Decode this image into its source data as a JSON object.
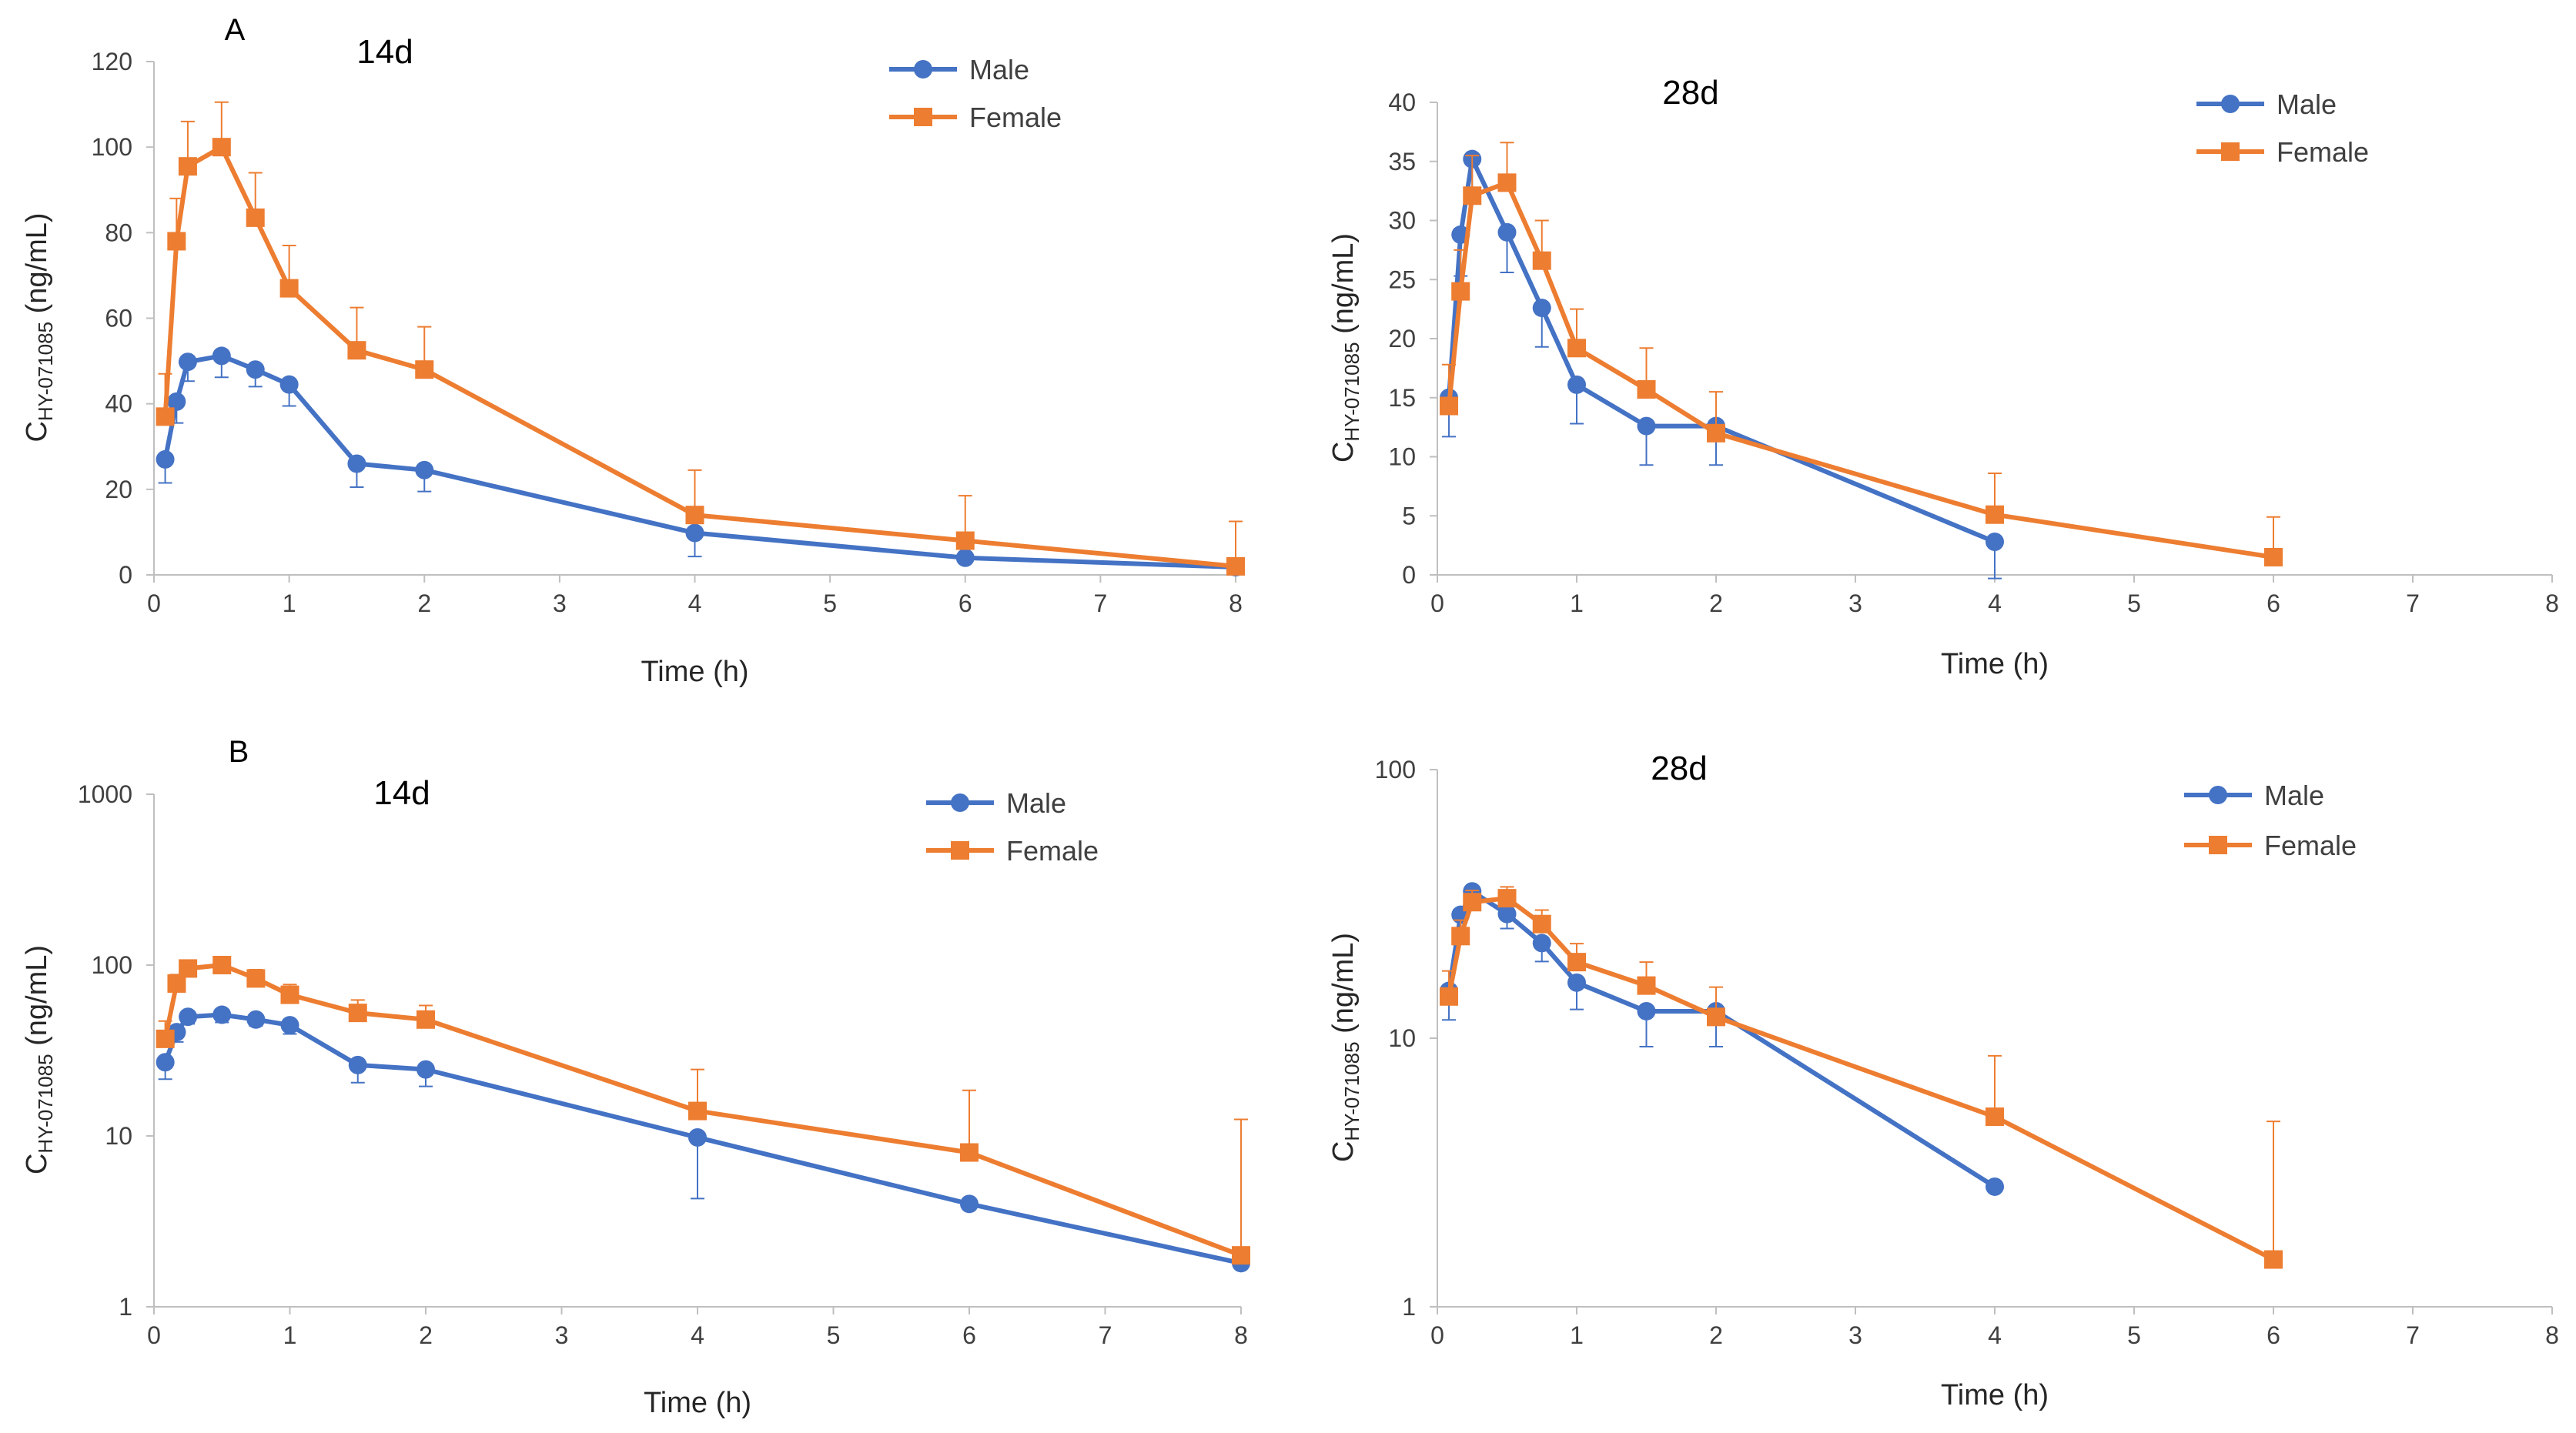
{
  "figure": {
    "panel_labels": [
      "A",
      "B"
    ]
  },
  "colors": {
    "male": "#4472C4",
    "female": "#ED7D31",
    "axis": "#BFBFBF",
    "text": "#404040"
  },
  "chart_data": [
    {
      "type": "line",
      "scale": "linear",
      "title": "14d",
      "panel": "A",
      "xlabel_main": "Time ",
      "xlabel_unit": "(h)",
      "ylabel_main": "C",
      "ylabel_sub": "HY-071085",
      "ylabel_unit": " (ng/mL)",
      "xlim": [
        0,
        8
      ],
      "ylim": [
        0,
        120
      ],
      "xticks": [
        "0",
        "1",
        "2",
        "3",
        "4",
        "5",
        "6",
        "7",
        "8"
      ],
      "yticks": [
        "0",
        "20",
        "40",
        "60",
        "80",
        "100",
        "120"
      ],
      "legend": [
        "Male",
        "Female"
      ],
      "legend_position": "top-right",
      "series": [
        {
          "name": "Male",
          "marker": "circle",
          "x": [
            0.083,
            0.167,
            0.25,
            0.5,
            0.75,
            1,
            1.5,
            2,
            4,
            6,
            8
          ],
          "y": [
            27,
            40.5,
            49.8,
            51.2,
            48,
            44.5,
            26,
            24.5,
            9.8,
            4,
            1.8
          ],
          "err": [
            5.5,
            5,
            4.5,
            5,
            4,
            5,
            5.5,
            5,
            5.5,
            0,
            0
          ]
        },
        {
          "name": "Female",
          "marker": "square",
          "x": [
            0.083,
            0.167,
            0.25,
            0.5,
            0.75,
            1,
            1.5,
            2,
            4,
            6,
            8
          ],
          "y": [
            37,
            78,
            95.5,
            100,
            83.5,
            67,
            52.5,
            48,
            14,
            8,
            2
          ],
          "err": [
            10,
            10,
            10.5,
            10.5,
            10.5,
            10,
            10,
            10,
            10.5,
            10.5,
            10.5
          ]
        }
      ]
    },
    {
      "type": "line",
      "scale": "linear",
      "title": "28d",
      "panel": "",
      "xlabel_main": "Time ",
      "xlabel_unit": "(h)",
      "ylabel_main": "C",
      "ylabel_sub": "HY-071085",
      "ylabel_unit": " (ng/mL)",
      "xlim": [
        0,
        8
      ],
      "ylim": [
        0,
        40
      ],
      "xticks": [
        "0",
        "1",
        "2",
        "3",
        "4",
        "5",
        "6",
        "7",
        "8"
      ],
      "yticks": [
        "0",
        "5",
        "10",
        "15",
        "20",
        "25",
        "30",
        "35",
        "40"
      ],
      "legend": [
        "Male",
        "Female"
      ],
      "legend_position": "top-right",
      "series": [
        {
          "name": "Male",
          "marker": "circle",
          "x": [
            0.083,
            0.167,
            0.25,
            0.5,
            0.75,
            1,
            1.5,
            2,
            4
          ],
          "y": [
            15,
            28.8,
            35.2,
            29,
            22.6,
            16.1,
            12.6,
            12.6,
            2.8
          ],
          "err": [
            3.3,
            3.5,
            3.5,
            3.4,
            3.3,
            3.3,
            3.3,
            3.3,
            3.1
          ]
        },
        {
          "name": "Female",
          "marker": "square",
          "x": [
            0.083,
            0.167,
            0.25,
            0.5,
            0.75,
            1,
            1.5,
            2,
            4,
            6
          ],
          "y": [
            14.3,
            24,
            32.1,
            33.2,
            26.6,
            19.2,
            15.7,
            12,
            5.1,
            1.5
          ],
          "err": [
            3.5,
            3.5,
            3.4,
            3.4,
            3.4,
            3.3,
            3.5,
            3.5,
            3.5,
            3.4
          ]
        }
      ]
    },
    {
      "type": "line",
      "scale": "log",
      "title": "14d",
      "panel": "B",
      "xlabel_main": "Time ",
      "xlabel_unit": "(h)",
      "ylabel_main": "C",
      "ylabel_sub": "HY-071085",
      "ylabel_unit": " (ng/mL)",
      "xlim": [
        0,
        8
      ],
      "ylim": [
        1,
        1000
      ],
      "xticks": [
        "0",
        "1",
        "2",
        "3",
        "4",
        "5",
        "6",
        "7",
        "8"
      ],
      "yticks": [
        "1",
        "10",
        "100",
        "1000"
      ],
      "legend": [
        "Male",
        "Female"
      ],
      "legend_position": "top-right",
      "series": [
        {
          "name": "Male",
          "marker": "circle",
          "x": [
            0.083,
            0.167,
            0.25,
            0.5,
            0.75,
            1,
            1.5,
            2,
            4,
            6,
            8
          ],
          "y": [
            27,
            40.5,
            49.8,
            51.2,
            48,
            44.5,
            26,
            24.5,
            9.8,
            4,
            1.8
          ],
          "err": [
            5.5,
            5,
            4.5,
            5,
            4,
            5,
            5.5,
            5,
            5.5,
            0,
            0
          ]
        },
        {
          "name": "Female",
          "marker": "square",
          "x": [
            0.083,
            0.167,
            0.25,
            0.5,
            0.75,
            1,
            1.5,
            2,
            4,
            6,
            8
          ],
          "y": [
            37,
            78,
            95.5,
            100,
            83.5,
            67,
            52.5,
            48,
            14,
            8,
            2
          ],
          "err": [
            10,
            10,
            10.5,
            10.5,
            10.5,
            10,
            10,
            10,
            10.5,
            10.5,
            10.5
          ]
        }
      ]
    },
    {
      "type": "line",
      "scale": "log",
      "title": "28d",
      "panel": "",
      "xlabel_main": "Time ",
      "xlabel_unit": "(h)",
      "ylabel_main": "C",
      "ylabel_sub": "HY-071085",
      "ylabel_unit": " (ng/mL)",
      "xlim": [
        0,
        8
      ],
      "ylim": [
        1,
        100
      ],
      "xticks": [
        "0",
        "1",
        "2",
        "3",
        "4",
        "5",
        "6",
        "7",
        "8"
      ],
      "yticks": [
        "1",
        "10",
        "100"
      ],
      "legend": [
        "Male",
        "Female"
      ],
      "legend_position": "top-right",
      "series": [
        {
          "name": "Male",
          "marker": "circle",
          "x": [
            0.083,
            0.167,
            0.25,
            0.5,
            0.75,
            1,
            1.5,
            2,
            4
          ],
          "y": [
            15,
            28.8,
            35.2,
            29,
            22.6,
            16.1,
            12.6,
            12.6,
            2.8
          ],
          "err": [
            3.3,
            3.5,
            3.5,
            3.4,
            3.3,
            3.3,
            3.3,
            3.3,
            0
          ]
        },
        {
          "name": "Female",
          "marker": "square",
          "x": [
            0.083,
            0.167,
            0.25,
            0.5,
            0.75,
            1,
            1.5,
            2,
            4,
            6
          ],
          "y": [
            14.3,
            24,
            32.1,
            33.2,
            26.6,
            19.2,
            15.7,
            12,
            5.1,
            1.5
          ],
          "err": [
            3.5,
            3.5,
            3.4,
            3.4,
            3.4,
            3.3,
            3.5,
            3.5,
            3.5,
            3.4
          ]
        }
      ]
    }
  ]
}
